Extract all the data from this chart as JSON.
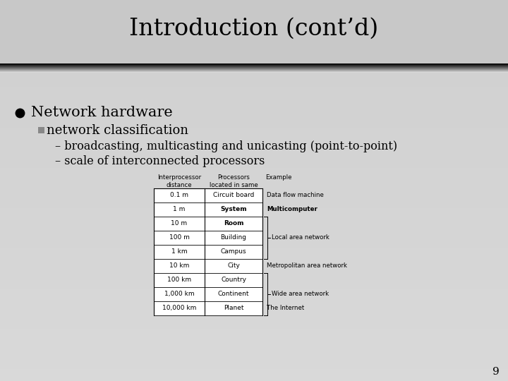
{
  "title": "Introduction (cont’d)",
  "bullet1": "Network hardware",
  "bullet2": "network classification",
  "sub1": "– broadcasting, multicasting and unicasting (point-to-point)",
  "sub2": "– scale of interconnected processors",
  "page_number": "9",
  "table_headers": [
    "Interprocessor\ndistance",
    "Processors\nlocated in same",
    "Example"
  ],
  "table_rows": [
    [
      "0.1 m",
      "Circuit board",
      "Data flow machine",
      false
    ],
    [
      "1 m",
      "System",
      "Multicomputer",
      true
    ],
    [
      "10 m",
      "Room",
      "",
      true
    ],
    [
      "100 m",
      "Building",
      "",
      false
    ],
    [
      "1 km",
      "Campus",
      "",
      false
    ],
    [
      "10 km",
      "City",
      "Metropolitan area network",
      false
    ],
    [
      "100 km",
      "Country",
      "",
      false
    ],
    [
      "1,000 km",
      "Continent",
      "",
      false
    ],
    [
      "10,000 km",
      "Planet",
      "The Internet",
      false
    ]
  ],
  "bracket_lan": [
    2,
    4
  ],
  "bracket_wan": [
    6,
    8
  ],
  "label_lan": "Local area network",
  "label_metro": "Metropolitan area network",
  "label_wan": "Wide area network",
  "label_internet": "The Internet",
  "label_dfm": "Data flow machine",
  "label_multi": "Multicomputer"
}
